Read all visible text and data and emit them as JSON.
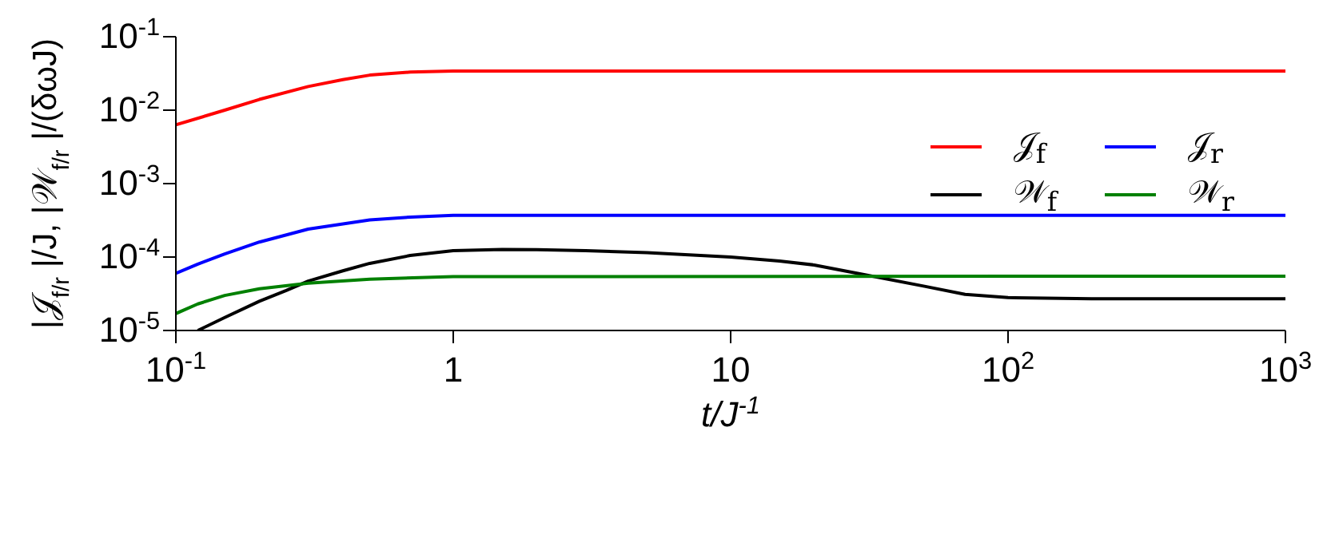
{
  "chart_data": {
    "type": "line",
    "xlabel": "t/J$^{-1}$",
    "ylabel": "|𝒥$_{f/r}$|/J, |𝒲$_{f/r}$|/(δωJ)",
    "log": "xy",
    "legend": "top right",
    "xlim": [
      0.1,
      1000
    ],
    "ylim": [
      1e-05,
      0.1
    ],
    "xticks": [
      {
        "value": 0.1,
        "label": "10$^{-1}$"
      },
      1,
      10,
      {
        "value": 100,
        "label": "10$^{2}$"
      },
      {
        "value": 1000,
        "label": "10$^{3}$"
      }
    ],
    "yticks": [
      {
        "value": 1e-05,
        "label": "10$^{-5}$"
      },
      {
        "value": 0.0001,
        "label": "10$^{-4}$"
      },
      {
        "value": 0.001,
        "label": "10$^{-3}$"
      },
      {
        "value": 0.01,
        "label": "10$^{-2}$"
      },
      {
        "value": 0.1,
        "label": "10$^{-1}$"
      }
    ],
    "series": [
      {
        "name": "𝒥$_{f}$",
        "color": "#ff0000",
        "x": [
          0.1,
          0.15,
          0.2,
          0.3,
          0.4,
          0.5,
          0.7,
          1,
          10,
          1000
        ],
        "values": [
          0.0063,
          0.01,
          0.014,
          0.021,
          0.026,
          0.03,
          0.033,
          0.034,
          0.034,
          0.034
        ]
      },
      {
        "name": "𝒥$_{r}$",
        "color": "#0000ff",
        "x": [
          0.1,
          0.12,
          0.15,
          0.2,
          0.3,
          0.5,
          0.7,
          1,
          1000
        ],
        "values": [
          6e-05,
          8e-05,
          0.00011,
          0.00016,
          0.00024,
          0.00032,
          0.00035,
          0.00037,
          0.00037
        ]
      },
      {
        "name": "𝒲$_{f}$",
        "color": "#000000",
        "x": [
          0.12,
          0.15,
          0.2,
          0.25,
          0.3,
          0.4,
          0.5,
          0.7,
          1,
          1.5,
          2,
          3,
          5,
          10,
          15,
          20,
          30,
          50,
          70,
          100,
          200,
          500,
          1000
        ],
        "values": [
          1e-05,
          1.5e-05,
          2.5e-05,
          3.5e-05,
          4.7e-05,
          6.5e-05,
          8.2e-05,
          0.000105,
          0.000122,
          0.000127,
          0.000126,
          0.000122,
          0.000115,
          0.0001,
          8.8e-05,
          7.8e-05,
          5.8e-05,
          4e-05,
          3.1e-05,
          2.8e-05,
          2.7e-05,
          2.7e-05,
          2.7e-05
        ]
      },
      {
        "name": "𝒲$_{r}$",
        "color": "#008000",
        "x": [
          0.1,
          0.12,
          0.15,
          0.2,
          0.3,
          0.5,
          1,
          1000
        ],
        "values": [
          1.7e-05,
          2.3e-05,
          3e-05,
          3.7e-05,
          4.4e-05,
          5e-05,
          5.4e-05,
          5.5e-05
        ]
      }
    ]
  }
}
